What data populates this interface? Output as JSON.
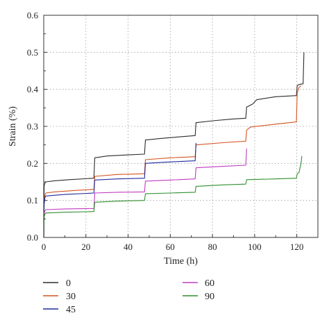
{
  "chart_data": {
    "type": "line",
    "xlabel": "Time (h)",
    "ylabel": "Strain (%)",
    "xlim": [
      0,
      130
    ],
    "ylim": [
      0,
      0.6
    ],
    "xticks": [
      0,
      20,
      40,
      60,
      80,
      100,
      120
    ],
    "yticks": [
      0.0,
      0.1,
      0.2,
      0.3,
      0.4,
      0.5,
      0.6
    ],
    "xtick_labels": [
      "0",
      "20",
      "40",
      "60",
      "80",
      "100",
      "120"
    ],
    "ytick_labels": [
      "0.0",
      "0.1",
      "0.2",
      "0.3",
      "0.4",
      "0.5",
      "0.6"
    ],
    "grid": true,
    "legend_position": "bottom",
    "series": [
      {
        "name": "0",
        "color": "#2b2b2b",
        "points": [
          [
            0,
            0.0
          ],
          [
            0.2,
            0.14
          ],
          [
            0.6,
            0.147
          ],
          [
            1,
            0.15
          ],
          [
            5,
            0.153
          ],
          [
            12,
            0.156
          ],
          [
            23.8,
            0.16
          ],
          [
            24.2,
            0.215
          ],
          [
            30,
            0.22
          ],
          [
            40,
            0.223
          ],
          [
            47.8,
            0.225
          ],
          [
            48.2,
            0.263
          ],
          [
            55,
            0.267
          ],
          [
            65,
            0.272
          ],
          [
            71.8,
            0.275
          ],
          [
            72.2,
            0.31
          ],
          [
            80,
            0.315
          ],
          [
            90,
            0.32
          ],
          [
            95.8,
            0.322
          ],
          [
            96.2,
            0.352
          ],
          [
            99,
            0.36
          ],
          [
            101,
            0.372
          ],
          [
            110,
            0.38
          ],
          [
            119.8,
            0.383
          ],
          [
            120.2,
            0.41
          ],
          [
            121,
            0.413
          ],
          [
            123,
            0.415
          ],
          [
            123.4,
            0.5
          ]
        ]
      },
      {
        "name": "30",
        "color": "#d4541e",
        "points": [
          [
            0,
            0.0
          ],
          [
            0.2,
            0.1
          ],
          [
            0.6,
            0.115
          ],
          [
            1,
            0.12
          ],
          [
            5,
            0.123
          ],
          [
            15,
            0.127
          ],
          [
            23.8,
            0.13
          ],
          [
            24.2,
            0.165
          ],
          [
            35,
            0.17
          ],
          [
            47.8,
            0.172
          ],
          [
            48.2,
            0.21
          ],
          [
            60,
            0.215
          ],
          [
            71.8,
            0.218
          ],
          [
            72.2,
            0.25
          ],
          [
            85,
            0.256
          ],
          [
            95.8,
            0.26
          ],
          [
            96.2,
            0.29
          ],
          [
            98,
            0.298
          ],
          [
            110,
            0.306
          ],
          [
            119.8,
            0.312
          ],
          [
            120.2,
            0.39
          ],
          [
            121,
            0.405
          ],
          [
            122,
            0.41
          ]
        ]
      },
      {
        "name": "45",
        "color": "#1f2a9e",
        "points": [
          [
            0,
            0.0
          ],
          [
            0.2,
            0.09
          ],
          [
            0.6,
            0.108
          ],
          [
            1,
            0.112
          ],
          [
            10,
            0.116
          ],
          [
            23.8,
            0.12
          ],
          [
            24.2,
            0.155
          ],
          [
            35,
            0.158
          ],
          [
            47.8,
            0.16
          ],
          [
            48.2,
            0.2
          ],
          [
            60,
            0.204
          ],
          [
            71.8,
            0.207
          ],
          [
            72.2,
            0.255
          ]
        ]
      },
      {
        "name": "60",
        "color": "#c23ac2",
        "points": [
          [
            0,
            0.0
          ],
          [
            0.2,
            0.065
          ],
          [
            0.6,
            0.072
          ],
          [
            1,
            0.075
          ],
          [
            10,
            0.077
          ],
          [
            23.8,
            0.078
          ],
          [
            24.2,
            0.12
          ],
          [
            35,
            0.122
          ],
          [
            47.8,
            0.123
          ],
          [
            48.2,
            0.152
          ],
          [
            60,
            0.155
          ],
          [
            71.8,
            0.158
          ],
          [
            72.2,
            0.188
          ],
          [
            85,
            0.192
          ],
          [
            95.8,
            0.195
          ],
          [
            96.2,
            0.24
          ]
        ]
      },
      {
        "name": "90",
        "color": "#2f8f2f",
        "points": [
          [
            0,
            0.0
          ],
          [
            0.2,
            0.055
          ],
          [
            0.6,
            0.064
          ],
          [
            1,
            0.066
          ],
          [
            10,
            0.068
          ],
          [
            23.8,
            0.07
          ],
          [
            24.2,
            0.095
          ],
          [
            35,
            0.098
          ],
          [
            47.8,
            0.1
          ],
          [
            48.2,
            0.118
          ],
          [
            60,
            0.12
          ],
          [
            71.8,
            0.122
          ],
          [
            72.2,
            0.138
          ],
          [
            85,
            0.142
          ],
          [
            95.8,
            0.144
          ],
          [
            96.2,
            0.156
          ],
          [
            110,
            0.158
          ],
          [
            119.8,
            0.16
          ],
          [
            120.2,
            0.172
          ],
          [
            121,
            0.175
          ],
          [
            122,
            0.2
          ],
          [
            122.4,
            0.22
          ]
        ]
      }
    ]
  }
}
